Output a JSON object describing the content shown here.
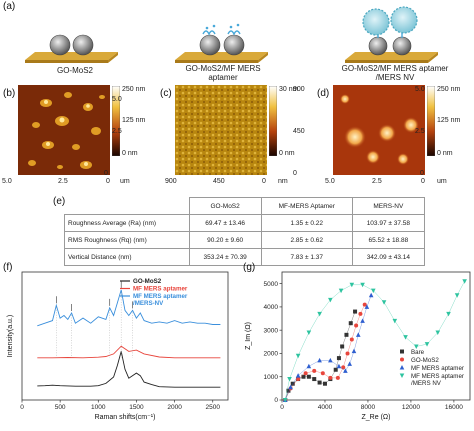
{
  "panels": {
    "a": "(a)",
    "b": "(b)",
    "c": "(c)",
    "d": "(d)",
    "e": "(e)",
    "f": "(f)",
    "g": "(g)"
  },
  "schematic": {
    "label1": "GO-MoS2",
    "label2_line1": "GO-MoS2/MF MERS",
    "label2_line2": "aptamer",
    "label3_line1": "GO-MoS2/MF MERS aptamer",
    "label3_line2": "/MERS NV"
  },
  "afm": {
    "b": {
      "cbar_top": "250 nm",
      "cbar_mid": "125 nm",
      "cbar_bot": "0 nm",
      "y_top": "5.0",
      "y_mid": "2.5",
      "y_bot": "0",
      "x_left": "5.0",
      "x_mid": "2.5",
      "x_right": "0",
      "unit": "um"
    },
    "c": {
      "cbar_top": "30 nm",
      "cbar_mid": "",
      "cbar_bot": "0 nm",
      "y_top": "900",
      "y_mid": "450",
      "y_bot": "0",
      "x_left": "900",
      "x_mid": "450",
      "x_right": "0",
      "unit": "nm"
    },
    "d": {
      "cbar_top": "250 nm",
      "cbar_mid": "125 nm",
      "cbar_bot": "0 nm",
      "y_top": "5.0",
      "y_mid": "2.5",
      "y_bot": "0",
      "x_left": "5.0",
      "x_mid": "2.5",
      "x_right": "0",
      "unit": "um"
    }
  },
  "table": {
    "headers": [
      "",
      "GO-MoS2",
      "MF-MERS Aptamer",
      "MERS-NV"
    ],
    "rows": [
      [
        "Roughness Average (Ra) (nm)",
        "69.47 ± 13.46",
        "1.35 ± 0.22",
        "103.97 ± 37.58"
      ],
      [
        "RMS Roughness (Rq) (nm)",
        "90.20 ± 9.60",
        "2.85 ± 0.62",
        "65.52 ± 18.88"
      ],
      [
        "Vertical Distance (nm)",
        "353.24 ± 70.39",
        "7.83 ± 1.37",
        "342.09 ± 43.14"
      ]
    ]
  },
  "chart_data": [
    {
      "type": "line",
      "panel": "f",
      "xlabel": "Raman shifts(cm⁻¹)",
      "ylabel": "Intensity(a.u.)",
      "xlim": [
        0,
        2700
      ],
      "ylim": [
        0,
        5000
      ],
      "x_ticks": [
        0,
        500,
        1000,
        1500,
        2000,
        2500
      ],
      "y_ticks": [
        0,
        1000,
        2000,
        3000,
        4000,
        5000
      ],
      "legend_position": "top-right",
      "series": [
        {
          "name": "GO-MoS2",
          "color": "#222222",
          "x": [
            200,
            300,
            400,
            500,
            600,
            700,
            800,
            900,
            1000,
            1100,
            1200,
            1250,
            1300,
            1350,
            1400,
            1500,
            1550,
            1600,
            1700,
            1800,
            2000,
            2200,
            2400,
            2600
          ],
          "y": [
            550,
            560,
            580,
            560,
            550,
            540,
            540,
            540,
            560,
            650,
            900,
            1350,
            1900,
            1200,
            850,
            1050,
            950,
            700,
            600,
            520,
            500,
            500,
            500,
            500
          ]
        },
        {
          "name": "MF MERS aptamer",
          "color": "#e8453c",
          "x": [
            200,
            400,
            600,
            800,
            1000,
            1100,
            1200,
            1300,
            1400,
            1500,
            1600,
            1800,
            2000,
            2200,
            2400,
            2600
          ],
          "y": [
            1650,
            1650,
            1660,
            1650,
            1670,
            1700,
            1800,
            2100,
            1900,
            1950,
            1800,
            1680,
            1650,
            1650,
            1650,
            1650
          ]
        },
        {
          "name": "MF MERS aptamer /MERS-NV",
          "color": "#3a8fdc",
          "x": [
            200,
            300,
            400,
            450,
            500,
            550,
            600,
            650,
            700,
            800,
            900,
            1000,
            1100,
            1150,
            1200,
            1250,
            1300,
            1350,
            1400,
            1450,
            1500,
            1550,
            1600,
            1700,
            1800,
            1900,
            2000,
            2100,
            2200,
            2300,
            2400,
            2500,
            2600
          ],
          "y": [
            2900,
            3000,
            3100,
            3700,
            3200,
            3300,
            3150,
            3400,
            3000,
            3200,
            3000,
            3250,
            3150,
            3600,
            3300,
            3800,
            4300,
            3500,
            3300,
            3500,
            3200,
            3400,
            3100,
            3000,
            3050,
            3000,
            3100,
            3000,
            3050,
            3000,
            3000,
            2950,
            2950
          ]
        }
      ]
    },
    {
      "type": "scatter",
      "panel": "g",
      "xlabel": "Z_Re (Ω)",
      "ylabel": "Z_Im (Ω)",
      "xlim": [
        0,
        17500
      ],
      "ylim": [
        0,
        5500
      ],
      "x_ticks": [
        0,
        4000,
        8000,
        12000,
        16000
      ],
      "y_ticks": [
        0,
        1000,
        2000,
        3000,
        4000,
        5000
      ],
      "legend_position": "bottom-right",
      "series": [
        {
          "name": "Bare",
          "color": "#333333",
          "marker": "square",
          "x": [
            300,
            600,
            1000,
            1500,
            2000,
            2500,
            3000,
            3500,
            4000,
            4500,
            5000,
            5300,
            5600,
            6000,
            6400,
            6800
          ],
          "y": [
            0,
            400,
            700,
            900,
            1000,
            1000,
            900,
            750,
            700,
            900,
            1300,
            1800,
            2300,
            2800,
            3300,
            3800
          ]
        },
        {
          "name": "GO-MoS2",
          "color": "#e8453c",
          "marker": "circle",
          "x": [
            300,
            800,
            1500,
            2200,
            3000,
            3800,
            4500,
            5200,
            5700,
            6100,
            6500,
            6900,
            7300,
            7700
          ],
          "y": [
            0,
            500,
            900,
            1150,
            1250,
            1150,
            950,
            950,
            1400,
            2000,
            2600,
            3200,
            3700,
            4100
          ]
        },
        {
          "name": "MF MERS aptamer",
          "color": "#2f5fd0",
          "marker": "triangle-up",
          "x": [
            300,
            800,
            1500,
            2500,
            3500,
            4500,
            5300,
            5900,
            6300,
            6700,
            7100,
            7500,
            7900,
            8300
          ],
          "y": [
            0,
            550,
            1050,
            1450,
            1700,
            1700,
            1450,
            1250,
            1550,
            2100,
            2800,
            3400,
            4000,
            4500
          ]
        },
        {
          "name": "MF MERS aptamer /MERS NV",
          "color": "#2ec4a0",
          "marker": "triangle-down",
          "x": [
            300,
            700,
            1500,
            2500,
            3500,
            4500,
            5500,
            6500,
            7500,
            8500,
            9500,
            10500,
            11500,
            12500,
            13500,
            14500,
            15500,
            16300,
            17000
          ],
          "y": [
            0,
            900,
            1900,
            2900,
            3700,
            4300,
            4700,
            4950,
            4950,
            4700,
            4200,
            3400,
            2700,
            2300,
            2400,
            2900,
            3700,
            4500,
            5100
          ]
        }
      ]
    }
  ]
}
